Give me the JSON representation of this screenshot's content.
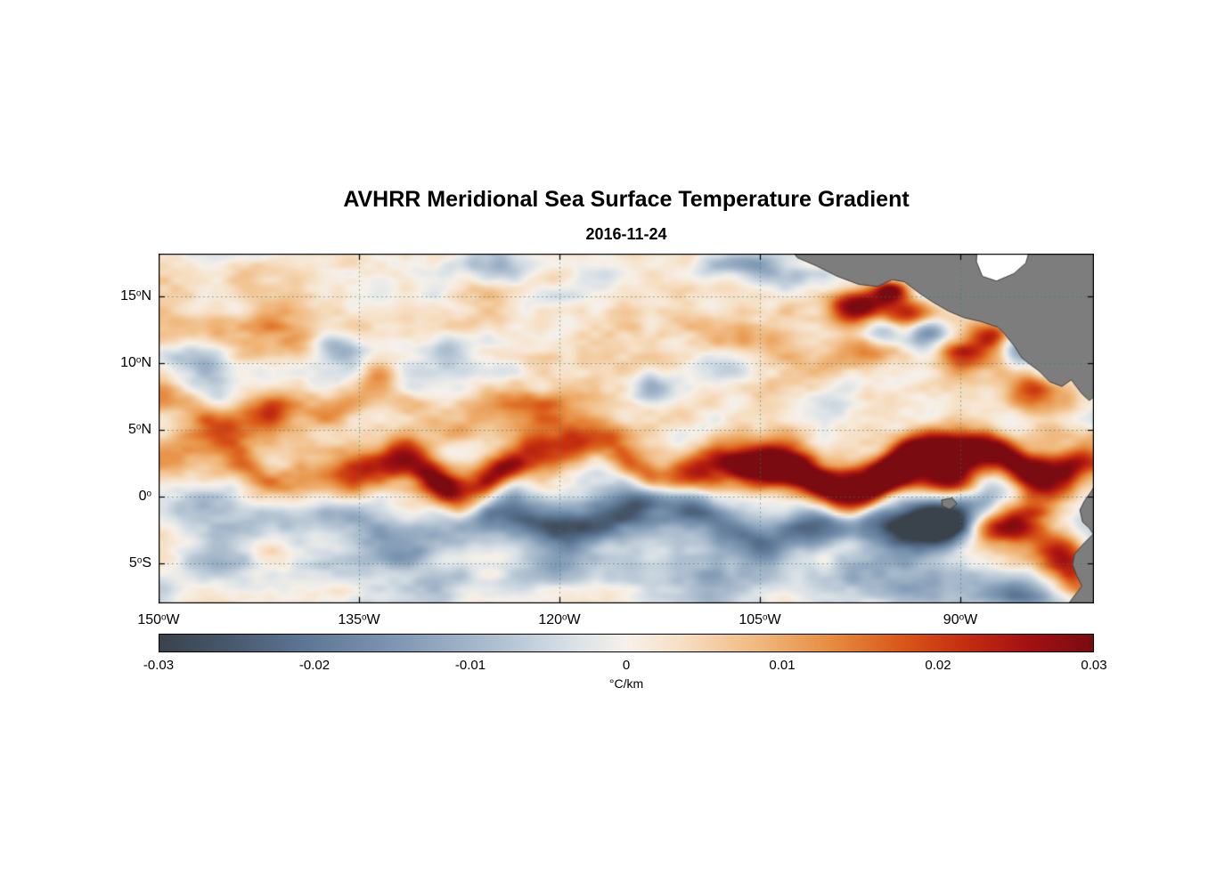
{
  "chart_data": {
    "type": "heatmap",
    "title": "AVHRR Meridional Sea Surface Temperature Gradient",
    "subtitle": "2016-11-24",
    "xlabel": "",
    "ylabel": "",
    "x_ticks": [
      {
        "deg": "150",
        "hem": "W",
        "lon": -150
      },
      {
        "deg": "135",
        "hem": "W",
        "lon": -135
      },
      {
        "deg": "120",
        "hem": "W",
        "lon": -120
      },
      {
        "deg": "105",
        "hem": "W",
        "lon": -105
      },
      {
        "deg": "90",
        "hem": "W",
        "lon": -90
      }
    ],
    "y_ticks": [
      {
        "deg": "15",
        "hem": "N",
        "lat": 15
      },
      {
        "deg": "10",
        "hem": "N",
        "lat": 10
      },
      {
        "deg": "5",
        "hem": "N",
        "lat": 5
      },
      {
        "deg": "0",
        "hem": "",
        "lat": 0
      },
      {
        "deg": "5",
        "hem": "S",
        "lat": -5
      }
    ],
    "map": {
      "lon_range": [
        -150,
        -80
      ],
      "lat_range": [
        -8,
        18.2
      ],
      "grid_lons": [
        -150,
        -135,
        -120,
        -105,
        -90
      ],
      "grid_lats": [
        15,
        10,
        5,
        0,
        -5
      ],
      "grid_color": "#2f7d7d",
      "land_color": "#7d7d7d",
      "land_edge_color": "#3f3f3f",
      "frame_color": "#000000"
    },
    "colorbar": {
      "label": "°C/km",
      "min": -0.03,
      "max": 0.03,
      "ticks": [
        "-0.03",
        "-0.02",
        "-0.01",
        "0",
        "0.01",
        "0.02",
        "0.03"
      ],
      "tick_values": [
        -0.03,
        -0.02,
        -0.01,
        0,
        0.01,
        0.02,
        0.03
      ],
      "stops": [
        [
          0.0,
          "#3a424b"
        ],
        [
          0.07,
          "#46566a"
        ],
        [
          0.16,
          "#5d7896"
        ],
        [
          0.26,
          "#8099b4"
        ],
        [
          0.36,
          "#aebfd0"
        ],
        [
          0.44,
          "#d8e0e6"
        ],
        [
          0.5,
          "#f6f1ea"
        ],
        [
          0.56,
          "#f6dfc3"
        ],
        [
          0.64,
          "#f0b97e"
        ],
        [
          0.72,
          "#e68c3f"
        ],
        [
          0.79,
          "#da5a1a"
        ],
        [
          0.86,
          "#c52f10"
        ],
        [
          0.93,
          "#a31112"
        ],
        [
          1.0,
          "#7a0b10"
        ]
      ]
    },
    "notable_features": [
      "Strong positive meridional SST gradient band meandering along 1-5N (North Equatorial Front, tropical instability waves)",
      "Negative gradient band just south of the Equator",
      "Intense gradient dipoles in the Gulf of Tehuantepec / Papagayo region off Central America",
      "Strong positive gradients along the Ecuador / Peru coast, negative patch at far southeast corner",
      "Gray land mask: Mexico / Central America (upper right), South America (lower right), Galapagos Islands"
    ],
    "field_model": {
      "noise": {
        "seed": 11,
        "sx": 0.24,
        "sy": 0.42,
        "octaves": 3,
        "amp": 0.012
      },
      "bands": [
        {
          "base_lat": 2.2,
          "amp": 0.024,
          "width": 1.15,
          "base_m": 0.45,
          "meanders": [
            [
              1.2,
              14,
              0.3
            ],
            [
              0.9,
              31,
              1.2
            ],
            [
              0.45,
              7.3,
              4.0
            ]
          ],
          "segments": [
            [
              -128,
              5,
              0.85
            ],
            [
              -106.5,
              5,
              0.95
            ],
            [
              -94,
              5.5,
              1.05
            ],
            [
              -86,
              3.5,
              0.8
            ]
          ]
        },
        {
          "base_lat": -1.8,
          "amp": -0.017,
          "width": 1.3,
          "base_m": 0.5,
          "meanders": [
            [
              0.9,
              13,
              2.0
            ],
            [
              0.6,
              29,
              0.5
            ]
          ],
          "segments": [
            [
              -131,
              4,
              0.55
            ],
            [
              -116,
              6,
              0.95
            ],
            [
              -104,
              5,
              0.75
            ],
            [
              -92,
              4,
              0.8
            ]
          ]
        },
        {
          "base_lat": 6.6,
          "amp": 0.01,
          "width": 0.95,
          "base_m": 0.35,
          "lon_max": -112,
          "meanders": [
            [
              0.8,
              17,
              2.2
            ],
            [
              0.4,
              8,
              0.6
            ]
          ],
          "segments": [
            [
              -146,
              4,
              0.75
            ],
            [
              -135,
              4,
              0.65
            ],
            [
              -122,
              4,
              0.55
            ]
          ]
        },
        {
          "base_lat": 13.0,
          "amp": 0.0045,
          "width": 1.6,
          "base_m": 0.5,
          "lon_max": -100,
          "meanders": [
            [
              0.9,
              21,
              1.5
            ]
          ],
          "segments": [
            [
              -138,
              7,
              0.6
            ],
            [
              -117,
              7,
              0.5
            ]
          ]
        },
        {
          "base_lat": -5.9,
          "amp": -0.0085,
          "width": 1.1,
          "base_m": 0.4,
          "meanders": [
            [
              0.7,
              16,
              1.0
            ]
          ],
          "segments": [
            [
              -139,
              5,
              0.7
            ],
            [
              -122,
              5,
              0.55
            ],
            [
              -99,
              6,
              0.55
            ]
          ]
        },
        {
          "base_lat": 12.5,
          "amp": 0.002,
          "width": 4.0,
          "base_m": 1.0,
          "meanders": [],
          "segments": []
        }
      ],
      "blobs": [
        [
          -97.9,
          14.2,
          0.026,
          1.3,
          0.8
        ],
        [
          -95.2,
          15.4,
          0.032,
          0.9,
          0.6
        ],
        [
          -93.2,
          13.6,
          0.024,
          1.5,
          0.8
        ],
        [
          -92.4,
          12.2,
          -0.026,
          1.2,
          0.9
        ],
        [
          -95.9,
          12.4,
          -0.014,
          1.0,
          0.7
        ],
        [
          -97.2,
          10.9,
          0.012,
          1.6,
          0.9
        ],
        [
          -89.6,
          10.8,
          0.018,
          1.5,
          0.8
        ],
        [
          -87.6,
          12.1,
          0.02,
          1.0,
          0.7
        ],
        [
          -85.7,
          11.0,
          -0.015,
          1.0,
          0.8
        ],
        [
          -84.9,
          8.1,
          0.015,
          1.3,
          0.9
        ],
        [
          -96.2,
          1.6,
          0.02,
          2.6,
          0.9
        ],
        [
          -90.6,
          1.1,
          0.022,
          1.8,
          0.8
        ],
        [
          -92.2,
          -1.3,
          -0.017,
          1.5,
          0.8
        ],
        [
          -91.6,
          -2.4,
          -0.014,
          2.2,
          0.9
        ],
        [
          -85.6,
          -0.9,
          0.02,
          1.9,
          0.9
        ],
        [
          -86.2,
          -2.3,
          0.022,
          2.4,
          0.9
        ],
        [
          -82.8,
          -4.4,
          0.03,
          1.7,
          1.1
        ],
        [
          -81.6,
          -6.3,
          0.022,
          1.3,
          1.2
        ],
        [
          -84.6,
          -7.4,
          -0.018,
          2.6,
          1.0
        ],
        [
          -136.6,
          11.3,
          -0.018,
          1.3,
          0.9
        ],
        [
          -128.6,
          11.2,
          -0.013,
          1.2,
          0.8
        ],
        [
          -124.6,
          17.3,
          -0.014,
          1.8,
          0.7
        ],
        [
          -107.2,
          17.4,
          -0.013,
          2.2,
          0.7
        ],
        [
          -147.6,
          10.2,
          -0.012,
          1.6,
          1.0
        ],
        [
          -113.2,
          8.4,
          -0.012,
          1.5,
          0.9
        ],
        [
          -141.6,
          6.9,
          0.011,
          1.3,
          0.8
        ],
        [
          -133.6,
          9.1,
          0.011,
          1.1,
          0.7
        ]
      ]
    },
    "land_polygons": {
      "central_america": [
        [
          -103.2,
          19.2
        ],
        [
          -102.2,
          17.9
        ],
        [
          -100.8,
          17.3
        ],
        [
          -99.2,
          16.5
        ],
        [
          -97.6,
          15.9
        ],
        [
          -96.2,
          15.75
        ],
        [
          -95.1,
          16.25
        ],
        [
          -94.2,
          16.1
        ],
        [
          -93.0,
          15.2
        ],
        [
          -92.1,
          14.6
        ],
        [
          -90.9,
          13.9
        ],
        [
          -89.7,
          13.4
        ],
        [
          -88.4,
          13.1
        ],
        [
          -87.2,
          12.7
        ],
        [
          -86.7,
          12.2
        ],
        [
          -85.9,
          11.2
        ],
        [
          -85.4,
          10.4
        ],
        [
          -84.9,
          10.0
        ],
        [
          -84.1,
          9.4
        ],
        [
          -83.3,
          8.6
        ],
        [
          -82.4,
          8.25
        ],
        [
          -81.7,
          8.75
        ],
        [
          -80.9,
          7.7
        ],
        [
          -80.35,
          7.2
        ],
        [
          -79.85,
          7.6
        ],
        [
          -79.2,
          7.2
        ],
        [
          -78.0,
          6.6
        ],
        [
          -78.0,
          19.2
        ]
      ],
      "south_america": [
        [
          -79.6,
          1.4
        ],
        [
          -80.2,
          0.4
        ],
        [
          -80.7,
          -0.3
        ],
        [
          -81.05,
          -1.0
        ],
        [
          -80.85,
          -1.9
        ],
        [
          -80.35,
          -2.35
        ],
        [
          -80.05,
          -2.8
        ],
        [
          -80.75,
          -3.5
        ],
        [
          -81.45,
          -4.3
        ],
        [
          -81.6,
          -5.1
        ],
        [
          -81.3,
          -5.9
        ],
        [
          -80.9,
          -6.7
        ],
        [
          -81.6,
          -7.6
        ],
        [
          -82.3,
          -8.6
        ],
        [
          -78.0,
          -8.6
        ],
        [
          -78.0,
          1.4
        ]
      ],
      "galapagos": [
        [
          -91.4,
          -0.25
        ],
        [
          -90.6,
          -0.1
        ],
        [
          -90.25,
          -0.55
        ],
        [
          -90.8,
          -0.95
        ],
        [
          -91.35,
          -0.7
        ]
      ]
    },
    "sea_overlays": {
      "caribbean_gap": [
        [
          -88.7,
          19.2
        ],
        [
          -84.6,
          19.2
        ],
        [
          -85.1,
          17.5
        ],
        [
          -86.0,
          16.7
        ],
        [
          -87.3,
          16.15
        ],
        [
          -88.35,
          16.5
        ],
        [
          -88.8,
          17.6
        ]
      ]
    }
  }
}
